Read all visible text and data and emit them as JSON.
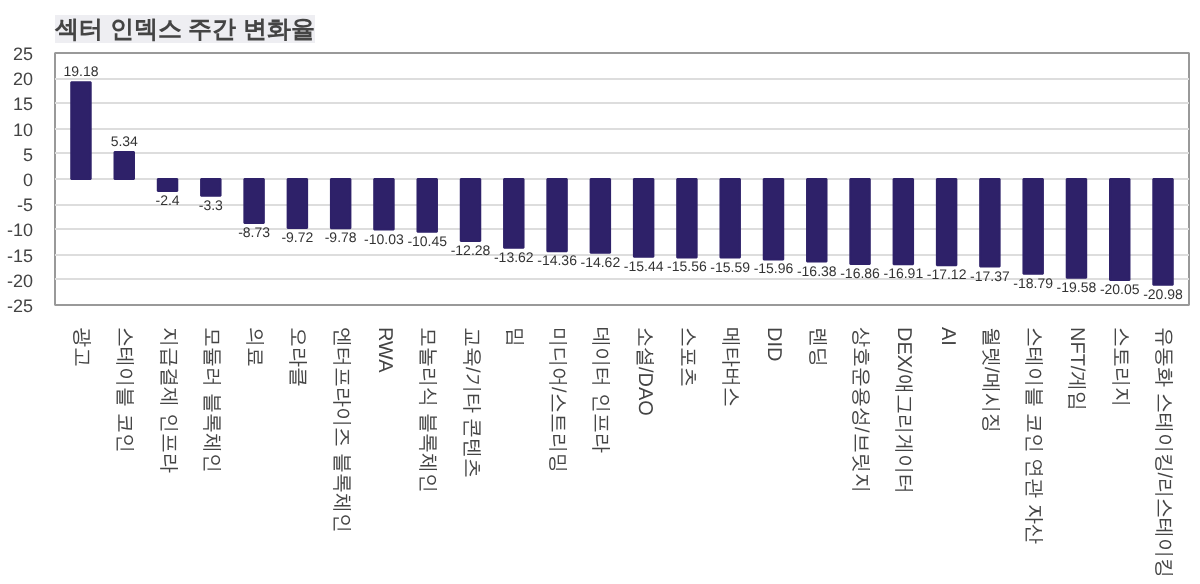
{
  "chart_data": {
    "type": "bar",
    "title": "섹터 인덱스 주간 변화율",
    "categories": [
      "광고",
      "스테이블 코인",
      "지급결제 인프라",
      "모듈러 블록체인",
      "의료",
      "오라클",
      "엔터프라이즈 블록체인",
      "RWA",
      "모놀리식 블록체인",
      "교육/기타 콘텐츠",
      "밈",
      "미디어/스트리밍",
      "데이터 인프라",
      "소셜/DAO",
      "스포츠",
      "메타버스",
      "DID",
      "렌딩",
      "상호운용성/브릿지",
      "DEX/애그리게이터",
      "AI",
      "월렛/메시징",
      "스테이블 코인 연관 자산",
      "NFT/게임",
      "스토리지",
      "유동화 스테이킹/리스테이킹"
    ],
    "values": [
      19.18,
      5.34,
      -2.4,
      -3.3,
      -8.73,
      -9.72,
      -9.78,
      -10.03,
      -10.45,
      -12.28,
      -13.62,
      -14.36,
      -14.62,
      -15.44,
      -15.56,
      -15.59,
      -15.96,
      -16.38,
      -16.86,
      -16.91,
      -17.12,
      -17.37,
      -18.79,
      -19.58,
      -20.05,
      -20.98
    ],
    "color": "#2e2169",
    "ylim": [
      -25,
      25
    ],
    "yticks": [
      -25,
      -20,
      -15,
      -10,
      -5,
      0,
      5,
      10,
      15,
      20,
      25
    ],
    "grid": "y",
    "data_labels": true
  }
}
